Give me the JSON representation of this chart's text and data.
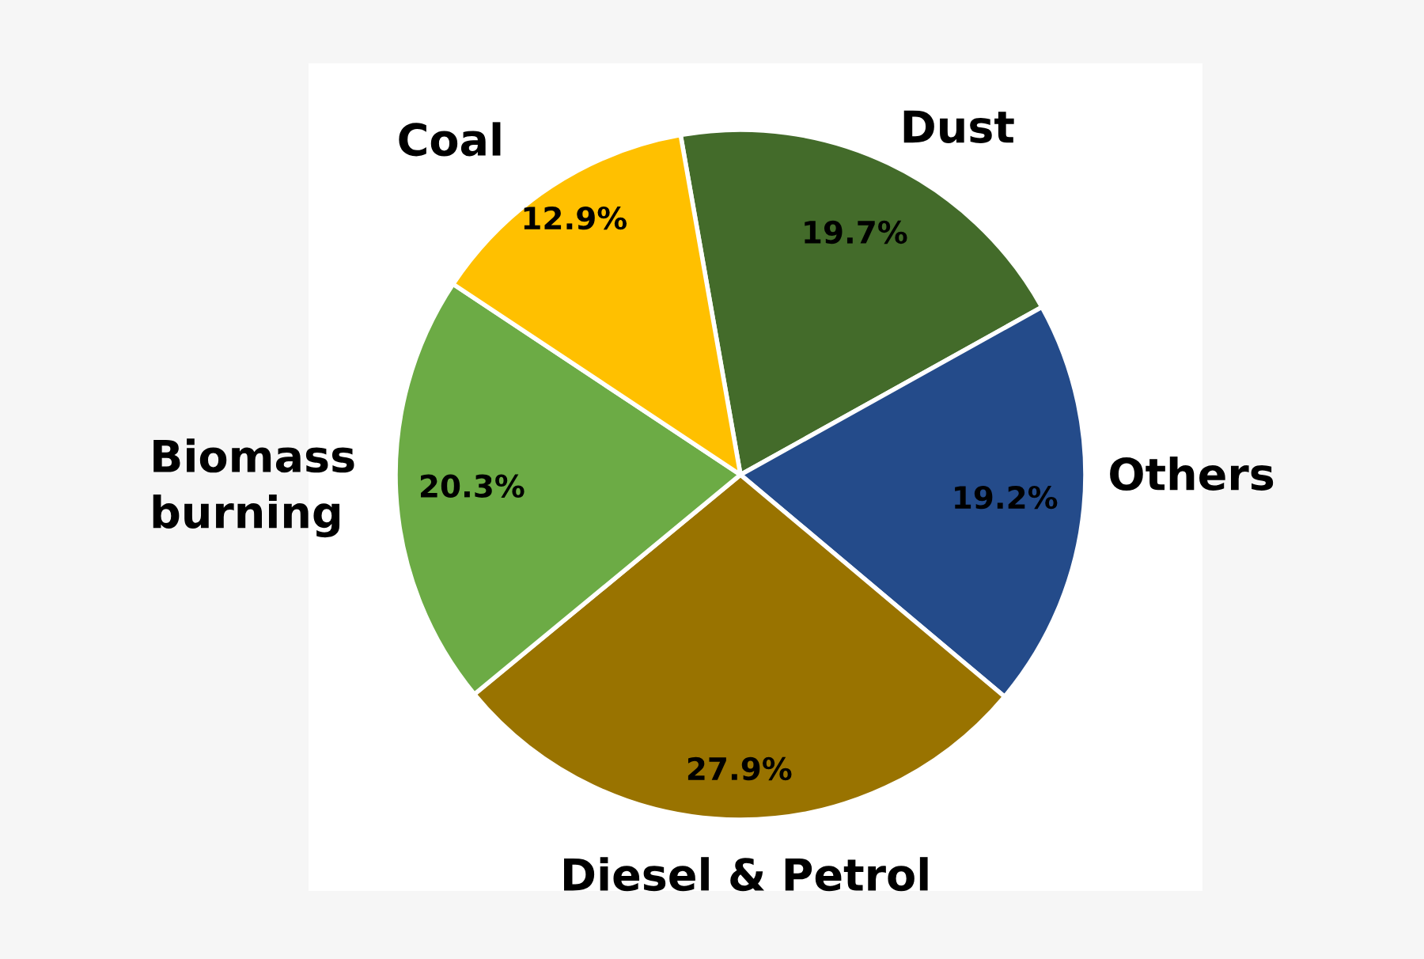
{
  "chart_data": {
    "type": "pie",
    "categories": [
      "Dust",
      "Others",
      "Diesel & Petrol",
      "Biomass burning",
      "Coal"
    ],
    "values": [
      19.7,
      19.2,
      27.9,
      20.3,
      12.9
    ],
    "colors": [
      "#436b2a",
      "#244b8a",
      "#997300",
      "#6cab45",
      "#ffc000"
    ],
    "value_labels": [
      "19.7%",
      "19.2%",
      "27.9%",
      "20.3%",
      "12.9%"
    ]
  }
}
